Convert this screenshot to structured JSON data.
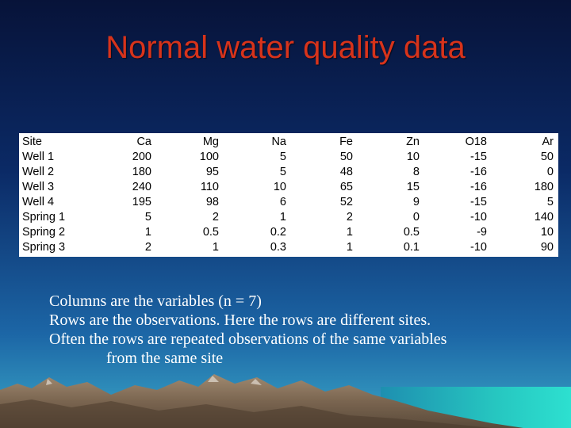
{
  "slide": {
    "title": "Normal water quality data",
    "colors": {
      "title": "#d7331b",
      "background_top": "#071339",
      "background_bottom": "#3aa6c6",
      "notes_text": "#ffffff"
    }
  },
  "table": {
    "headers": [
      "Site",
      "Ca",
      "Mg",
      "Na",
      "Fe",
      "Zn",
      "O18",
      "Ar"
    ],
    "rows": [
      [
        "Well 1",
        "200",
        "100",
        "5",
        "50",
        "10",
        "-15",
        "50"
      ],
      [
        "Well 2",
        "180",
        "95",
        "5",
        "48",
        "8",
        "-16",
        "0"
      ],
      [
        "Well 3",
        "240",
        "110",
        "10",
        "65",
        "15",
        "-16",
        "180"
      ],
      [
        "Well 4",
        "195",
        "98",
        "6",
        "52",
        "9",
        "-15",
        "5"
      ],
      [
        "Spring 1",
        "5",
        "2",
        "1",
        "2",
        "0",
        "-10",
        "140"
      ],
      [
        "Spring 2",
        "1",
        "0.5",
        "0.2",
        "1",
        "0.5",
        "-9",
        "10"
      ],
      [
        "Spring 3",
        "2",
        "1",
        "0.3",
        "1",
        "0.1",
        "-10",
        "90"
      ]
    ]
  },
  "notes": {
    "line1": "Columns are the variables (n = 7)",
    "line2": "Rows are the observations. Here the rows are different sites.",
    "line3": "Often the rows are repeated observations of the same variables",
    "line4": "from the same site"
  }
}
